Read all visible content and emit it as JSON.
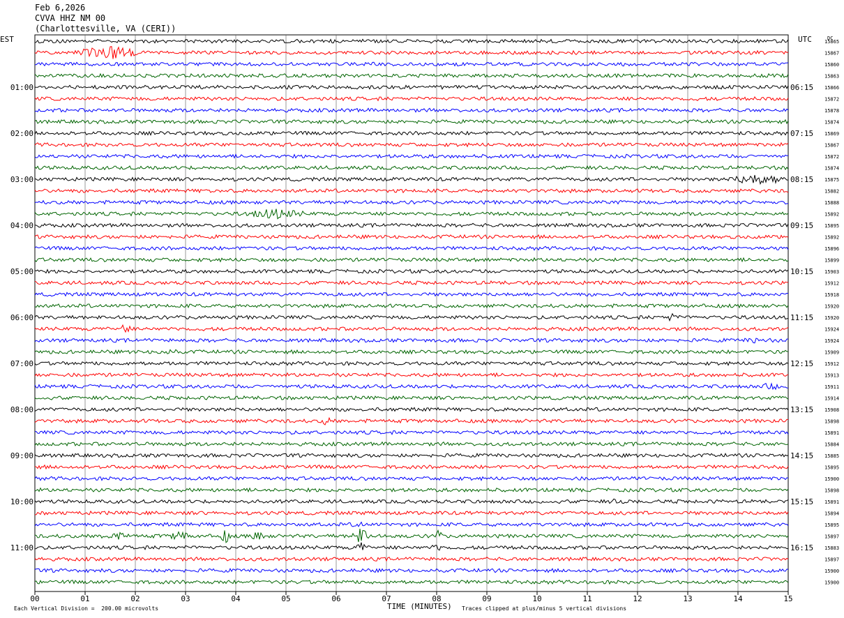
{
  "header": {
    "date": "Feb 6,2026",
    "station": "CVVA HHZ NM 00",
    "location": "(Charlottesville, VA (CERI))"
  },
  "left_axis_label": "EST",
  "right_axis_label": "UTC",
  "dc_label": "DC",
  "footer": {
    "scale_note": "Each Vertical Division =  200.00 microvolts",
    "clip_note": "Traces clipped at plus/minus 5 vertical divisions"
  },
  "chart_data": {
    "type": "line",
    "title": "",
    "xlabel": "TIME (MINUTES)",
    "ylabel": "",
    "xlim": [
      0,
      15
    ],
    "x_ticks": [
      "00",
      "01",
      "02",
      "03",
      "04",
      "05",
      "06",
      "07",
      "08",
      "09",
      "10",
      "11",
      "12",
      "13",
      "14",
      "15"
    ],
    "est_hour_labels": [
      "01:00",
      "02:00",
      "03:00",
      "04:00",
      "05:00",
      "06:00",
      "07:00",
      "08:00",
      "09:00",
      "10:00",
      "11:00"
    ],
    "utc_hour_labels": [
      "06:15",
      "07:15",
      "08:15",
      "09:15",
      "10:15",
      "11:15",
      "12:15",
      "13:15",
      "14:15",
      "15:15",
      "16:15"
    ],
    "trace_colors": [
      "#000000",
      "#ff0000",
      "#0000ff",
      "#006400"
    ],
    "dc_offsets": [
      15865,
      15867,
      15860,
      15863,
      15866,
      15872,
      15878,
      15874,
      15869,
      15867,
      15872,
      15874,
      15875,
      15882,
      15888,
      15892,
      15895,
      15892,
      15896,
      15899,
      15903,
      15912,
      15918,
      15920,
      15920,
      15924,
      15924,
      15909,
      15912,
      15913,
      15911,
      15914,
      15908,
      15898,
      15891,
      15884,
      15885,
      15895,
      15900,
      15898,
      15891,
      15894,
      15895,
      15897,
      15883,
      15897,
      15900,
      15900
    ]
  }
}
